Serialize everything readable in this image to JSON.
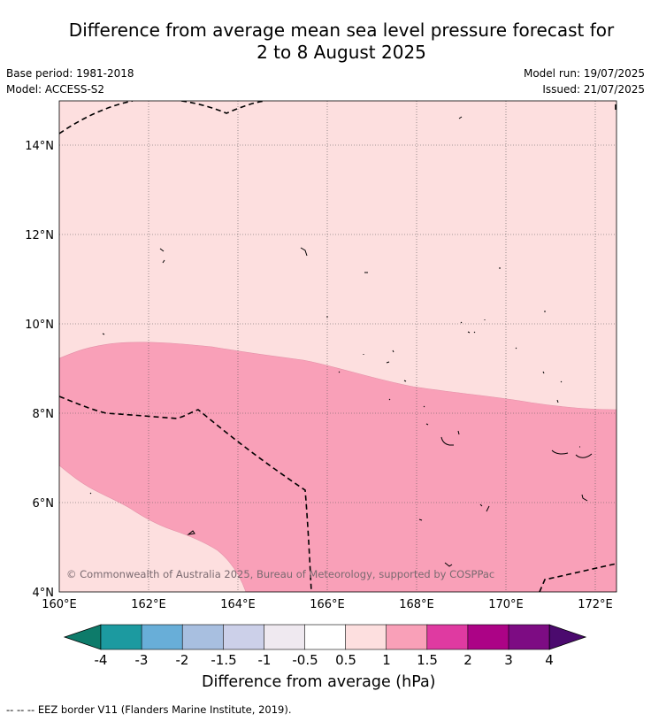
{
  "title": {
    "line1": "Difference from average mean sea level pressure forecast for",
    "line2": "2 to 8 August 2025"
  },
  "meta": {
    "base_period": "Base period: 1981-2018",
    "model": "Model: ACCESS-S2",
    "model_run": "Model run: 19/07/2025",
    "issued": "Issued: 21/07/2025"
  },
  "map": {
    "lat_labels": [
      "14°N",
      "12°N",
      "10°N",
      "8°N",
      "6°N",
      "4°N"
    ],
    "lon_labels": [
      "160°E",
      "162°E",
      "164°E",
      "166°E",
      "168°E",
      "170°E",
      "172°E"
    ],
    "copyright": "© Commonwealth of Australia 2025, Bureau of Meteorology, supported by COSPPac",
    "colors": {
      "band_0_5_to_1": "#fddfdf",
      "band_1_to_1_5": "#f9a0b8"
    }
  },
  "colorbar": {
    "title": "Difference from average (hPa)",
    "tick_labels": [
      "-4",
      "-3",
      "-2",
      "-1.5",
      "-1",
      "-0.5",
      "0.5",
      "1",
      "1.5",
      "2",
      "3",
      "4"
    ],
    "colors": [
      "#0d7b6a",
      "#1c9aa0",
      "#68aed8",
      "#a8bfe0",
      "#ccd0e9",
      "#efe9f0",
      "#ffffff",
      "#fddfdf",
      "#f9a0b8",
      "#df3aa1",
      "#ac0386",
      "#7d0c83",
      "#4b0a6e"
    ]
  },
  "footnote": "--  --  -- EEZ border V11 (Flanders Marine Institute, 2019)."
}
